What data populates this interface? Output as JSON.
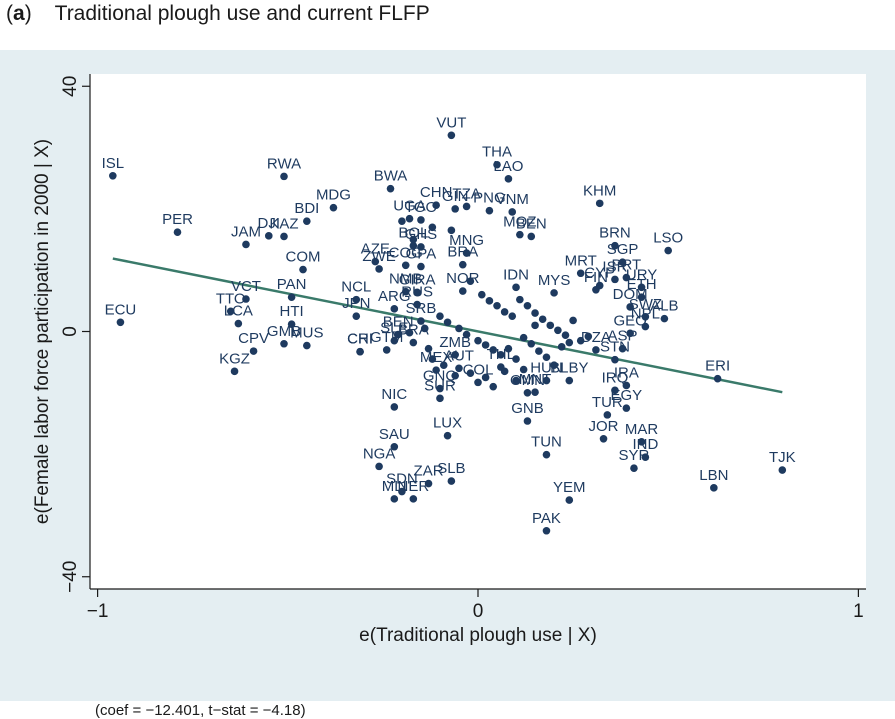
{
  "title": {
    "panel": "a",
    "text": "Traditional plough use and current FLFP"
  },
  "note": "(coef = −12.401, t−stat = −4.18)",
  "chart_data": {
    "type": "scatter",
    "title": "Traditional plough use and current FLFP",
    "xlabel": "e(Traditional plough use | X)",
    "ylabel": "e(Female labor force participation in 2000 | X)",
    "xlim": [
      -1.02,
      1.02
    ],
    "ylim": [
      -42,
      42
    ],
    "xticks": [
      {
        "value": -1,
        "label": "−1"
      },
      {
        "value": 0,
        "label": "0"
      },
      {
        "value": 1,
        "label": "1"
      }
    ],
    "yticks": [
      {
        "value": 40,
        "label": "40"
      },
      {
        "value": 0,
        "label": "0"
      },
      {
        "value": -40,
        "label": "−40"
      }
    ],
    "grid": false,
    "colors": {
      "point": "#1e3a5f",
      "fit_line": "#3a7a6a",
      "plot_bg": "#ffffff",
      "figure_bg": "#e4eef2"
    },
    "fit_line": {
      "x": [
        -0.96,
        0.8
      ],
      "y": [
        11.9,
        -9.9
      ]
    },
    "labeled_points": [
      {
        "label": "VUT",
        "x": -0.07,
        "y": 32.0
      },
      {
        "label": "THA",
        "x": 0.05,
        "y": 27.2
      },
      {
        "label": "LAO",
        "x": 0.08,
        "y": 24.9
      },
      {
        "label": "ISL",
        "x": -0.96,
        "y": 25.4
      },
      {
        "label": "RWA",
        "x": -0.51,
        "y": 25.3
      },
      {
        "label": "BWA",
        "x": -0.23,
        "y": 23.3
      },
      {
        "label": "KHM",
        "x": 0.32,
        "y": 20.9
      },
      {
        "label": "CHN",
        "x": -0.11,
        "y": 20.6
      },
      {
        "label": "TZA",
        "x": -0.03,
        "y": 20.4
      },
      {
        "label": "VNM",
        "x": 0.09,
        "y": 19.5
      },
      {
        "label": "MDG",
        "x": -0.38,
        "y": 20.2
      },
      {
        "label": "GIN",
        "x": -0.06,
        "y": 20.0
      },
      {
        "label": "PNG",
        "x": 0.03,
        "y": 19.7
      },
      {
        "label": "BDI",
        "x": -0.45,
        "y": 18.0
      },
      {
        "label": "UGA",
        "x": -0.18,
        "y": 18.4
      },
      {
        "label": "TGO",
        "x": -0.15,
        "y": 18.2
      },
      {
        "label": "PER",
        "x": -0.79,
        "y": 16.2
      },
      {
        "label": "DJI",
        "x": -0.55,
        "y": 15.6
      },
      {
        "label": "KAZ",
        "x": -0.51,
        "y": 15.5
      },
      {
        "label": "JAM",
        "x": -0.61,
        "y": 14.2
      },
      {
        "label": "MOZ",
        "x": 0.11,
        "y": 15.8
      },
      {
        "label": "BEN",
        "x": 0.14,
        "y": 15.5
      },
      {
        "label": "BRN",
        "x": 0.36,
        "y": 14.0
      },
      {
        "label": "LSO",
        "x": 0.5,
        "y": 13.2
      },
      {
        "label": "AZE",
        "x": -0.27,
        "y": 11.4
      },
      {
        "label": "BOL",
        "x": -0.17,
        "y": 14.0
      },
      {
        "label": "GHS",
        "x": -0.15,
        "y": 13.8
      },
      {
        "label": "MNG",
        "x": -0.03,
        "y": 12.8
      },
      {
        "label": "SGP",
        "x": 0.38,
        "y": 11.3
      },
      {
        "label": "COM",
        "x": -0.46,
        "y": 10.1
      },
      {
        "label": "ZWE",
        "x": -0.26,
        "y": 10.2
      },
      {
        "label": "COG",
        "x": -0.19,
        "y": 10.8
      },
      {
        "label": "GPA",
        "x": -0.15,
        "y": 10.6
      },
      {
        "label": "BRA",
        "x": -0.04,
        "y": 10.9
      },
      {
        "label": "MRT",
        "x": 0.27,
        "y": 9.5
      },
      {
        "label": "ISR",
        "x": 0.36,
        "y": 8.5
      },
      {
        "label": "PRT",
        "x": 0.39,
        "y": 8.8
      },
      {
        "label": "CYP",
        "x": 0.32,
        "y": 7.5
      },
      {
        "label": "URY",
        "x": 0.43,
        "y": 7.2
      },
      {
        "label": "IDN",
        "x": 0.1,
        "y": 7.2
      },
      {
        "label": "FIN",
        "x": 0.31,
        "y": 6.8
      },
      {
        "label": "VCT",
        "x": -0.61,
        "y": 5.3
      },
      {
        "label": "PAN",
        "x": -0.49,
        "y": 5.6
      },
      {
        "label": "NCL",
        "x": -0.32,
        "y": 5.2
      },
      {
        "label": "NMB",
        "x": -0.19,
        "y": 6.5
      },
      {
        "label": "GIRA",
        "x": -0.16,
        "y": 6.4
      },
      {
        "label": "NOR",
        "x": -0.04,
        "y": 6.6
      },
      {
        "label": "MYS",
        "x": 0.2,
        "y": 6.3
      },
      {
        "label": "ETH",
        "x": 0.43,
        "y": 5.6
      },
      {
        "label": "DOM",
        "x": 0.4,
        "y": 4.0
      },
      {
        "label": "RUS",
        "x": -0.16,
        "y": 4.4
      },
      {
        "label": "ARG",
        "x": -0.22,
        "y": 3.7
      },
      {
        "label": "TTO",
        "x": -0.65,
        "y": 3.3
      },
      {
        "label": "SWZ",
        "x": 0.44,
        "y": 2.4
      },
      {
        "label": "ALB",
        "x": 0.49,
        "y": 2.1
      },
      {
        "label": "ECU",
        "x": -0.94,
        "y": 1.5
      },
      {
        "label": "JPN",
        "x": -0.32,
        "y": 2.5
      },
      {
        "label": "SRB",
        "x": -0.15,
        "y": 1.7
      },
      {
        "label": "LCA",
        "x": -0.63,
        "y": 1.3
      },
      {
        "label": "HTI",
        "x": -0.49,
        "y": 1.2
      },
      {
        "label": "NPL",
        "x": 0.44,
        "y": 0.8
      },
      {
        "label": "GEO",
        "x": 0.4,
        "y": -0.3
      },
      {
        "label": "BEN",
        "x": -0.21,
        "y": -0.5
      },
      {
        "label": "SLE",
        "x": -0.22,
        "y": -1.5
      },
      {
        "label": "BRA",
        "x": -0.17,
        "y": -1.8
      },
      {
        "label": "GMB",
        "x": -0.51,
        "y": -2.0
      },
      {
        "label": "MUS",
        "x": -0.45,
        "y": -2.3
      },
      {
        "label": "CPV",
        "x": -0.59,
        "y": -3.2
      },
      {
        "label": "CHI",
        "x": -0.31,
        "y": -3.3
      },
      {
        "label": "CRI",
        "x": -0.31,
        "y": -3.3
      },
      {
        "label": "GTM",
        "x": -0.24,
        "y": -3.0
      },
      {
        "label": "DZA",
        "x": 0.31,
        "y": -3.0
      },
      {
        "label": "ASP",
        "x": 0.38,
        "y": -2.8
      },
      {
        "label": "ZMB",
        "x": -0.06,
        "y": -3.8
      },
      {
        "label": "STN",
        "x": 0.36,
        "y": -4.6
      },
      {
        "label": "KGZ",
        "x": -0.64,
        "y": -6.5
      },
      {
        "label": "ERI",
        "x": 0.63,
        "y": -7.7
      },
      {
        "label": "MEX",
        "x": -0.11,
        "y": -6.3
      },
      {
        "label": "AUT",
        "x": -0.05,
        "y": -6.0
      },
      {
        "label": "THL",
        "x": 0.06,
        "y": -5.8
      },
      {
        "label": "HUN",
        "x": 0.18,
        "y": -8.0
      },
      {
        "label": "BLBY",
        "x": 0.24,
        "y": -8.0
      },
      {
        "label": "IRQ",
        "x": 0.36,
        "y": -9.6
      },
      {
        "label": "IRA",
        "x": 0.39,
        "y": -8.8
      },
      {
        "label": "GNQ",
        "x": -0.1,
        "y": -9.3
      },
      {
        "label": "COL",
        "x": 0.0,
        "y": -8.3
      },
      {
        "label": "OMN",
        "x": 0.13,
        "y": -10.0
      },
      {
        "label": "MNT",
        "x": 0.15,
        "y": -9.9
      },
      {
        "label": "SUR",
        "x": -0.1,
        "y": -10.9
      },
      {
        "label": "NIC",
        "x": -0.22,
        "y": -12.3
      },
      {
        "label": "EGY",
        "x": 0.39,
        "y": -12.5
      },
      {
        "label": "TUR",
        "x": 0.34,
        "y": -13.6
      },
      {
        "label": "LUX",
        "x": -0.08,
        "y": -17.0
      },
      {
        "label": "GNB",
        "x": 0.13,
        "y": -14.6
      },
      {
        "label": "SAU",
        "x": -0.22,
        "y": -18.8
      },
      {
        "label": "MAR",
        "x": 0.43,
        "y": -18.0
      },
      {
        "label": "JOR",
        "x": 0.33,
        "y": -17.5
      },
      {
        "label": "TUN",
        "x": 0.18,
        "y": -20.1
      },
      {
        "label": "IND",
        "x": 0.44,
        "y": -20.5
      },
      {
        "label": "TJK",
        "x": 0.8,
        "y": -22.6
      },
      {
        "label": "NGA",
        "x": -0.26,
        "y": -22.0
      },
      {
        "label": "SYR",
        "x": 0.41,
        "y": -22.3
      },
      {
        "label": "LBN",
        "x": 0.62,
        "y": -25.5
      },
      {
        "label": "ZAR",
        "x": -0.13,
        "y": -24.8
      },
      {
        "label": "SLB",
        "x": -0.07,
        "y": -24.4
      },
      {
        "label": "SDN",
        "x": -0.2,
        "y": -26.1
      },
      {
        "label": "MLI",
        "x": -0.22,
        "y": -27.3
      },
      {
        "label": "NER",
        "x": -0.17,
        "y": -27.3
      },
      {
        "label": "YEM",
        "x": 0.24,
        "y": -27.5
      },
      {
        "label": "PAK",
        "x": 0.18,
        "y": -32.5
      }
    ],
    "cluster_points": [
      {
        "label": "",
        "x": -0.2,
        "y": 18.0
      },
      {
        "label": "",
        "x": -0.17,
        "y": 15.0
      },
      {
        "label": "",
        "x": -0.12,
        "y": 17.0
      },
      {
        "label": "",
        "x": -0.07,
        "y": 16.5
      },
      {
        "label": "",
        "x": -0.02,
        "y": 8.2
      },
      {
        "label": "",
        "x": 0.01,
        "y": 6.0
      },
      {
        "label": "",
        "x": 0.03,
        "y": 5.0
      },
      {
        "label": "",
        "x": 0.05,
        "y": 4.2
      },
      {
        "label": "",
        "x": 0.07,
        "y": 3.2
      },
      {
        "label": "",
        "x": 0.09,
        "y": 2.5
      },
      {
        "label": "",
        "x": 0.11,
        "y": 5.2
      },
      {
        "label": "",
        "x": 0.13,
        "y": 4.2
      },
      {
        "label": "",
        "x": 0.15,
        "y": 3.0
      },
      {
        "label": "",
        "x": 0.17,
        "y": 2.0
      },
      {
        "label": "",
        "x": 0.19,
        "y": 1.0
      },
      {
        "label": "",
        "x": 0.21,
        "y": 0.2
      },
      {
        "label": "",
        "x": 0.23,
        "y": -0.6
      },
      {
        "label": "",
        "x": 0.25,
        "y": 1.8
      },
      {
        "label": "",
        "x": 0.27,
        "y": -1.5
      },
      {
        "label": "",
        "x": 0.29,
        "y": -0.8
      },
      {
        "label": "",
        "x": -0.1,
        "y": 2.5
      },
      {
        "label": "",
        "x": -0.08,
        "y": 1.5
      },
      {
        "label": "",
        "x": -0.05,
        "y": 0.5
      },
      {
        "label": "",
        "x": -0.03,
        "y": -0.5
      },
      {
        "label": "",
        "x": 0.0,
        "y": -1.5
      },
      {
        "label": "",
        "x": 0.02,
        "y": -2.2
      },
      {
        "label": "",
        "x": 0.04,
        "y": -3.0
      },
      {
        "label": "",
        "x": 0.06,
        "y": -3.8
      },
      {
        "label": "",
        "x": 0.08,
        "y": -2.8
      },
      {
        "label": "",
        "x": 0.1,
        "y": -4.5
      },
      {
        "label": "",
        "x": 0.12,
        "y": -1.0
      },
      {
        "label": "",
        "x": 0.14,
        "y": -2.0
      },
      {
        "label": "",
        "x": 0.16,
        "y": -3.2
      },
      {
        "label": "",
        "x": 0.18,
        "y": -4.2
      },
      {
        "label": "",
        "x": 0.2,
        "y": -5.5
      },
      {
        "label": "",
        "x": 0.22,
        "y": -2.5
      },
      {
        "label": "",
        "x": 0.24,
        "y": -1.8
      },
      {
        "label": "",
        "x": -0.12,
        "y": -4.5
      },
      {
        "label": "",
        "x": -0.09,
        "y": -5.5
      },
      {
        "label": "",
        "x": -0.06,
        "y": -7.2
      },
      {
        "label": "",
        "x": -0.02,
        "y": -6.8
      },
      {
        "label": "",
        "x": 0.02,
        "y": -7.5
      },
      {
        "label": "",
        "x": 0.04,
        "y": -9.0
      },
      {
        "label": "",
        "x": 0.07,
        "y": -6.5
      },
      {
        "label": "",
        "x": 0.1,
        "y": -8.0
      },
      {
        "label": "",
        "x": 0.12,
        "y": -6.2
      },
      {
        "label": "",
        "x": -0.14,
        "y": 0.5
      },
      {
        "label": "",
        "x": -0.18,
        "y": -0.2
      },
      {
        "label": "",
        "x": -0.13,
        "y": -2.8
      },
      {
        "label": "",
        "x": 0.15,
        "y": 1.0
      }
    ]
  }
}
